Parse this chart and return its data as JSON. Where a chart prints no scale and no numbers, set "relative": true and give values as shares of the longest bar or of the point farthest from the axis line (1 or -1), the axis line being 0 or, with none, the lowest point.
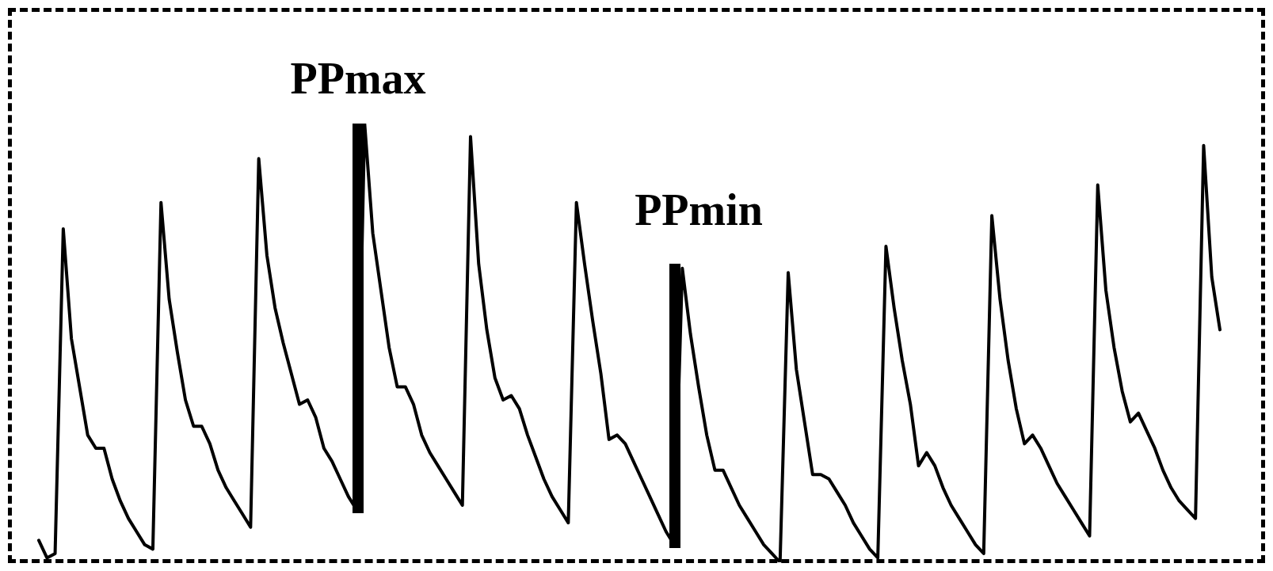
{
  "chart_data": {
    "type": "line",
    "relative": true,
    "marker": "none",
    "line_style": "solid",
    "annotations": [
      "PPmax",
      "PPmin"
    ],
    "categories": [
      null,
      null,
      null,
      null,
      null,
      null,
      null,
      null,
      null,
      null,
      null,
      null,
      null,
      null,
      null,
      null,
      null,
      null,
      null,
      null,
      null,
      null,
      null,
      null,
      null,
      null,
      null,
      null,
      null,
      null,
      null,
      null,
      null,
      null,
      null,
      null,
      null,
      null,
      null,
      null,
      null,
      null,
      null,
      null,
      null,
      null,
      null,
      null,
      null,
      null,
      null,
      null,
      null,
      null,
      null,
      null,
      null,
      null,
      null,
      null,
      null,
      null,
      null,
      null,
      null,
      null,
      null,
      null,
      null,
      null,
      null,
      null,
      null,
      null,
      null,
      null,
      null,
      null,
      null,
      null,
      null,
      null,
      null,
      null,
      null,
      null,
      null,
      null,
      null,
      null,
      null,
      null,
      null,
      null,
      null,
      null,
      null,
      null,
      null,
      null,
      null,
      null,
      null,
      null,
      null,
      null,
      null,
      null,
      null,
      null,
      null,
      null,
      null,
      null,
      null,
      null,
      null,
      null,
      null,
      null,
      null,
      null,
      null,
      null,
      null,
      null,
      null,
      null,
      null,
      null,
      null,
      null,
      null,
      null,
      null,
      null,
      null,
      null,
      null,
      null,
      null,
      null,
      null,
      null,
      null,
      null
    ],
    "series": [
      {
        "color": "#000000",
        "values": [
          0.05,
          0.01,
          0.02,
          0.76,
          0.51,
          0.4,
          0.29,
          0.26,
          0.26,
          0.19,
          0.14,
          0.1,
          0.07,
          0.04,
          0.03,
          0.82,
          0.6,
          0.48,
          0.37,
          0.31,
          0.31,
          0.27,
          0.21,
          0.17,
          0.14,
          0.11,
          0.08,
          0.92,
          0.7,
          0.58,
          0.5,
          0.43,
          0.36,
          0.37,
          0.33,
          0.26,
          0.23,
          0.19,
          0.15,
          0.12,
          1.0,
          0.75,
          0.62,
          0.49,
          0.4,
          0.4,
          0.36,
          0.29,
          0.25,
          0.22,
          0.19,
          0.16,
          0.13,
          0.97,
          0.68,
          0.53,
          0.42,
          0.37,
          0.38,
          0.35,
          0.29,
          0.24,
          0.19,
          0.15,
          0.12,
          0.09,
          0.82,
          0.68,
          0.55,
          0.43,
          0.28,
          0.29,
          0.27,
          0.23,
          0.19,
          0.15,
          0.11,
          0.07,
          0.04,
          0.67,
          0.52,
          0.4,
          0.29,
          0.21,
          0.21,
          0.17,
          0.13,
          0.1,
          0.07,
          0.04,
          0.02,
          0.0,
          0.66,
          0.44,
          0.32,
          0.2,
          0.2,
          0.19,
          0.16,
          0.13,
          0.09,
          0.06,
          0.03,
          0.01,
          0.72,
          0.58,
          0.46,
          0.36,
          0.22,
          0.25,
          0.22,
          0.17,
          0.13,
          0.1,
          0.07,
          0.04,
          0.02,
          0.79,
          0.6,
          0.46,
          0.35,
          0.27,
          0.29,
          0.26,
          0.22,
          0.18,
          0.15,
          0.12,
          0.09,
          0.06,
          0.86,
          0.62,
          0.49,
          0.39,
          0.32,
          0.34,
          0.3,
          0.26,
          0.21,
          0.17,
          0.14,
          0.12,
          0.1,
          0.95,
          0.65,
          0.53
        ]
      }
    ]
  }
}
